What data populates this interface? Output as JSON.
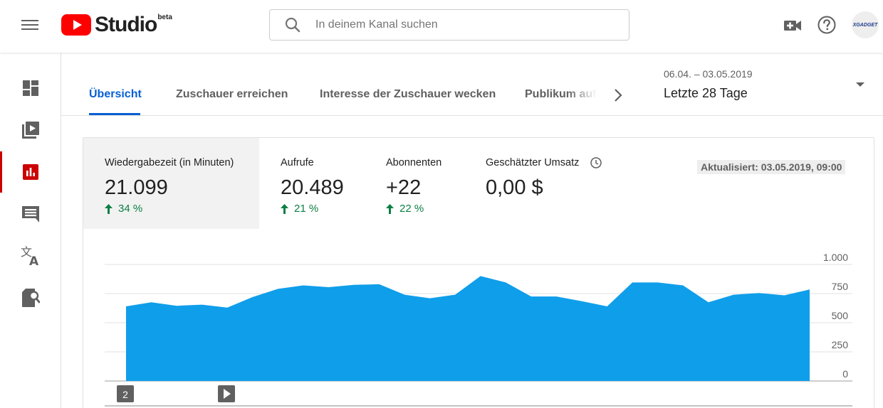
{
  "header": {
    "logo_text": "Studio",
    "logo_badge": "beta",
    "search_placeholder": "In deinem Kanal suchen",
    "avatar_text": "XGADGET"
  },
  "icons": {
    "menu": "hamburger-icon",
    "create": "create-video-icon",
    "help": "help-icon",
    "sidebar": [
      "dashboard-icon",
      "videos-icon",
      "analytics-icon",
      "comments-icon",
      "translations-icon",
      "copyright-icon"
    ]
  },
  "colors": {
    "accent_blue": "#065fd4",
    "active_red": "#cc0000",
    "chart_fill": "#0f9eea",
    "positive_green": "#0b8043",
    "logo_red": "#ff0000"
  },
  "tabs": [
    {
      "label": "Übersicht",
      "active": true
    },
    {
      "label": "Zuschauer erreichen",
      "active": false
    },
    {
      "label": "Interesse der Zuschauer wecken",
      "active": false
    },
    {
      "label": "Publikum aufb",
      "active": false
    }
  ],
  "date": {
    "range": "06.04. – 03.05.2019",
    "label": "Letzte 28 Tage"
  },
  "metrics": [
    {
      "label": "Wiedergabezeit (in Minuten)",
      "value": "21.099",
      "change": "34 %",
      "selected": true
    },
    {
      "label": "Aufrufe",
      "value": "20.489",
      "change": "21 %",
      "selected": false
    },
    {
      "label": "Abonnenten",
      "value": "+22",
      "change": "22 %",
      "selected": false
    },
    {
      "label": "Geschätzter Umsatz",
      "value": "0,00 $",
      "change": "",
      "selected": false
    }
  ],
  "updated": "Aktualisiert: 03.05.2019, 09:00",
  "markers": [
    {
      "label": "2",
      "icon": "count-marker"
    },
    {
      "label": "",
      "icon": "play-marker-icon"
    }
  ],
  "chart_data": {
    "type": "area",
    "title": "",
    "xlabel": "",
    "ylabel": "",
    "ylim": [
      0,
      1000
    ],
    "y_ticks": [
      0,
      250,
      500,
      750,
      1000
    ],
    "y_tick_labels": [
      "0",
      "250",
      "500",
      "750",
      "1.000"
    ],
    "grid": true,
    "x_count": 28,
    "values": [
      640,
      675,
      645,
      655,
      630,
      720,
      790,
      820,
      805,
      825,
      830,
      740,
      710,
      740,
      900,
      845,
      725,
      725,
      685,
      640,
      845,
      845,
      820,
      675,
      740,
      755,
      735,
      785
    ]
  }
}
